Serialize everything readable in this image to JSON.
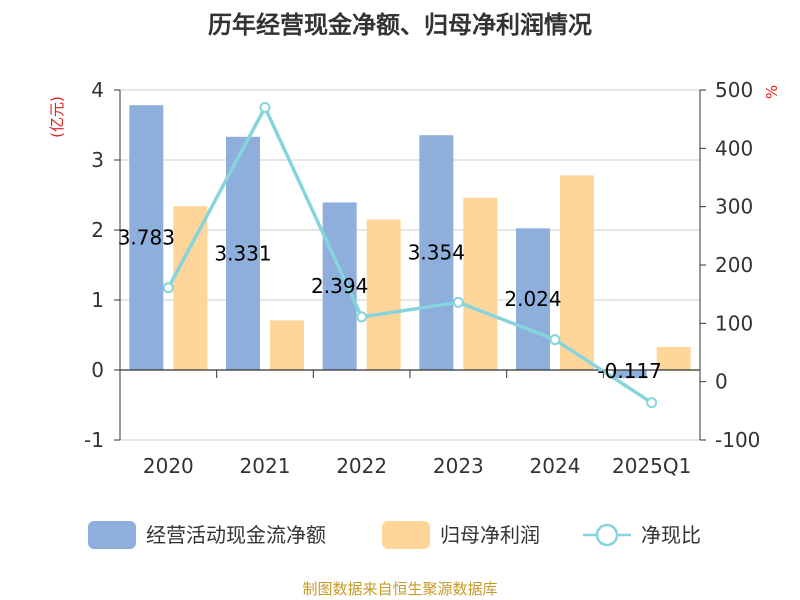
{
  "chart_data": {
    "type": "bar",
    "title": "历年经营现金净额、归母净利润情况",
    "categories": [
      "2020",
      "2021",
      "2022",
      "2023",
      "2024",
      "2025Q1"
    ],
    "series": [
      {
        "name": "经营活动现金流净额",
        "kind": "bar",
        "axis": "left",
        "color": "#8eaedb",
        "values": [
          3.783,
          3.331,
          2.394,
          3.354,
          2.024,
          -0.117
        ],
        "data_labels": [
          "3.783",
          "3.331",
          "2.394",
          "3.354",
          "2.024",
          "-0.117"
        ]
      },
      {
        "name": "归母净利润",
        "kind": "bar",
        "axis": "left",
        "color": "#fed699",
        "values": [
          2.34,
          0.71,
          2.15,
          2.46,
          2.78,
          0.33
        ]
      },
      {
        "name": "净现比",
        "kind": "line",
        "axis": "right",
        "color": "#86d4dc",
        "values": [
          161,
          470,
          111,
          136,
          72,
          -36
        ]
      }
    ],
    "y_left": {
      "label": "(亿元)",
      "ticks": [
        "4",
        "3",
        "2",
        "1",
        "0",
        "-1"
      ],
      "range": [
        -1,
        4
      ]
    },
    "y_right": {
      "label": "%",
      "ticks": [
        "500",
        "400",
        "300",
        "200",
        "100",
        "0",
        "-100"
      ],
      "range": [
        -100,
        500
      ]
    },
    "grid": true,
    "legend_position": "bottom"
  },
  "source": "制图数据来自恒生聚源数据库",
  "colors": {
    "unit_label": "#e0201c",
    "source": "#c79a2a"
  }
}
